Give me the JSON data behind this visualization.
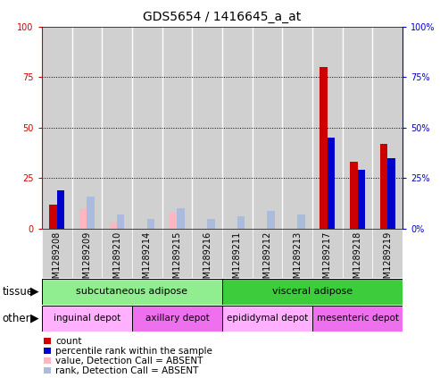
{
  "title": "GDS5654 / 1416645_a_at",
  "samples": [
    "GSM1289208",
    "GSM1289209",
    "GSM1289210",
    "GSM1289214",
    "GSM1289215",
    "GSM1289216",
    "GSM1289211",
    "GSM1289212",
    "GSM1289213",
    "GSM1289217",
    "GSM1289218",
    "GSM1289219"
  ],
  "count_values": [
    12,
    0,
    0,
    0,
    0,
    0,
    0,
    0,
    0,
    80,
    33,
    42
  ],
  "percentile_values": [
    19,
    0,
    0,
    0,
    0,
    0,
    0,
    0,
    0,
    45,
    29,
    35
  ],
  "absent_value_values": [
    0,
    10,
    3,
    0,
    8,
    0,
    0,
    0,
    0,
    0,
    0,
    0
  ],
  "absent_rank_values": [
    0,
    16,
    7,
    5,
    10,
    5,
    6,
    9,
    7,
    0,
    0,
    0
  ],
  "tissue_groups": [
    {
      "label": "subcutaneous adipose",
      "start": 0,
      "end": 6,
      "color": "#90EE90"
    },
    {
      "label": "visceral adipose",
      "start": 6,
      "end": 12,
      "color": "#3CCC3C"
    }
  ],
  "other_groups": [
    {
      "label": "inguinal depot",
      "start": 0,
      "end": 3,
      "color": "#FFB0FF"
    },
    {
      "label": "axillary depot",
      "start": 3,
      "end": 6,
      "color": "#EE70EE"
    },
    {
      "label": "epididymal depot",
      "start": 6,
      "end": 9,
      "color": "#FFB0FF"
    },
    {
      "label": "mesenteric depot",
      "start": 9,
      "end": 12,
      "color": "#EE70EE"
    }
  ],
  "ylim": [
    0,
    100
  ],
  "yticks": [
    0,
    25,
    50,
    75,
    100
  ],
  "bar_width": 0.25,
  "count_color": "#CC0000",
  "percentile_color": "#0000CC",
  "absent_value_color": "#FFB6C1",
  "absent_rank_color": "#AABBDD",
  "col_bg_color": "#D0D0D0",
  "plot_bg_color": "#FFFFFF",
  "title_fontsize": 10,
  "tick_fontsize": 7,
  "label_fontsize": 8,
  "legend_fontsize": 7.5
}
